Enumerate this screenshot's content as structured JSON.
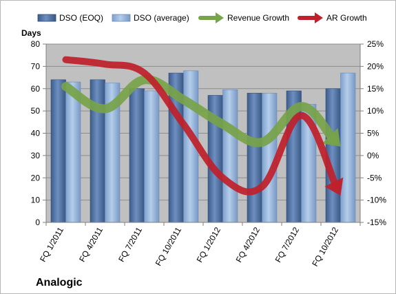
{
  "company_name": "Analogic",
  "chart_data": {
    "type": "bar",
    "categories": [
      "FQ 1/2011",
      "FQ 4/2011",
      "FQ 7/2011",
      "FQ 10/2011",
      "FQ 1/2012",
      "FQ 4/2012",
      "FQ 7/2012",
      "FQ 10/2012"
    ],
    "series": [
      {
        "name": "DSO (EOQ)",
        "type": "bar",
        "axis": "left",
        "color": "#4f6f9e",
        "values": [
          64,
          64,
          60,
          67,
          57,
          58,
          59,
          60
        ]
      },
      {
        "name": "DSO (average)",
        "type": "bar",
        "axis": "left",
        "color": "#8fb0d8",
        "values": [
          63,
          62.5,
          59,
          68,
          59.5,
          58,
          53,
          67
        ]
      },
      {
        "name": "Revenue Growth",
        "type": "line",
        "axis": "right",
        "color": "#77a349",
        "unit": "%",
        "values": [
          15.5,
          10.5,
          17,
          12.5,
          7,
          3,
          11,
          2
        ]
      },
      {
        "name": "AR Growth",
        "type": "line",
        "axis": "right",
        "color": "#c0202a",
        "unit": "%",
        "values": [
          21.5,
          20.5,
          18.5,
          7,
          -5,
          -7,
          9,
          -9
        ]
      }
    ],
    "ylabel": "Days",
    "ylim": [
      0,
      80
    ],
    "yticks": [
      "0",
      "10",
      "20",
      "30",
      "40",
      "50",
      "60",
      "70",
      "80"
    ],
    "y2lim": [
      -15,
      25
    ],
    "y2ticks": [
      "-15%",
      "-10%",
      "-5%",
      "0%",
      "5%",
      "10%",
      "15%",
      "20%",
      "25%"
    ],
    "grid": true,
    "plot_background": "#c0c0c0",
    "legend_position": "top"
  }
}
